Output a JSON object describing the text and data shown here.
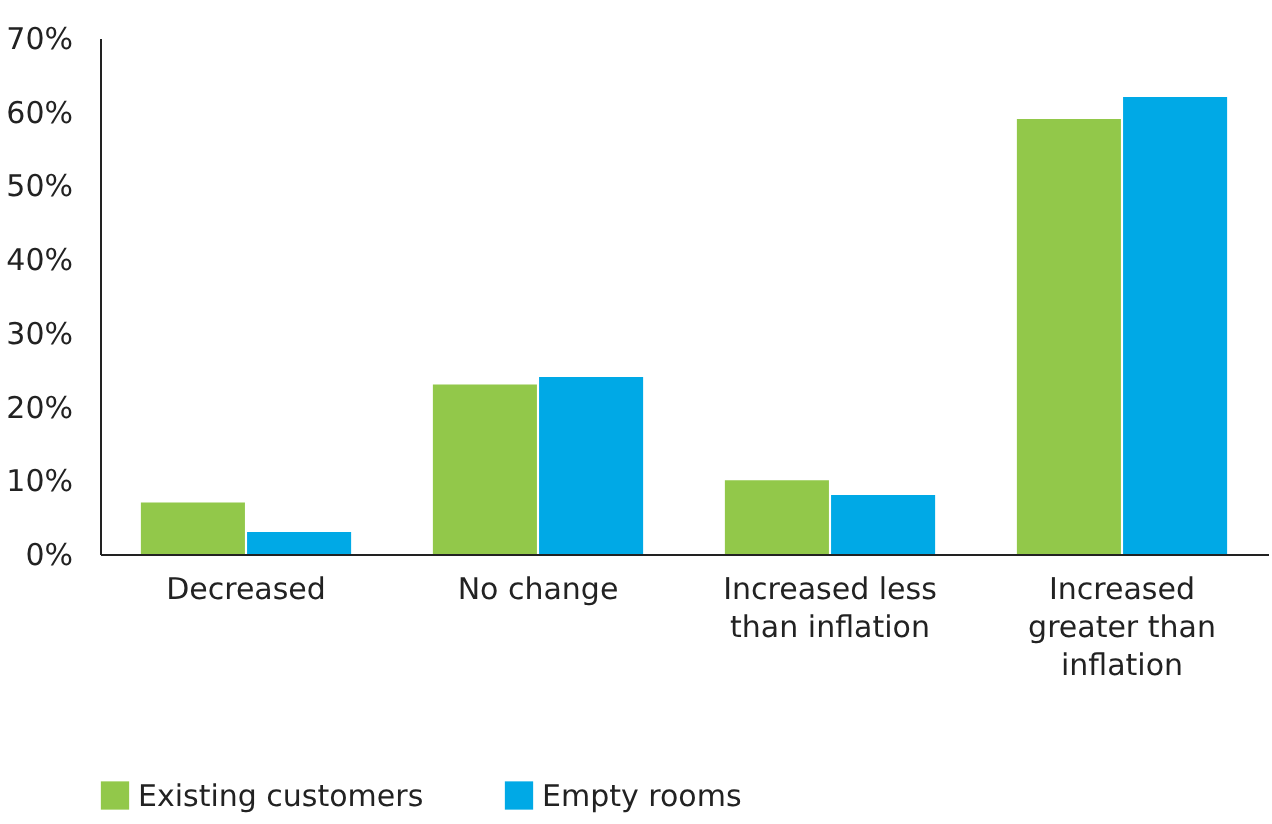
{
  "chart_data": {
    "type": "bar",
    "categories": [
      "Decreased",
      "No change",
      "Increased less than inflation",
      "Increased greater than inflation"
    ],
    "series": [
      {
        "name": "Existing customers",
        "color": "#92c84a",
        "values": [
          7,
          23,
          10,
          59
        ]
      },
      {
        "name": "Empty rooms",
        "color": "#00a9e6",
        "values": [
          3,
          24,
          8,
          62
        ]
      }
    ],
    "ylim": [
      0,
      70
    ],
    "yticks": [
      {
        "value": 0,
        "label": "0%"
      },
      {
        "value": 10,
        "label": "10%"
      },
      {
        "value": 20,
        "label": "20%"
      },
      {
        "value": 30,
        "label": "30%"
      },
      {
        "value": 40,
        "label": "40%"
      },
      {
        "value": 50,
        "label": "50%"
      },
      {
        "value": 60,
        "label": "60%"
      },
      {
        "value": 70,
        "label": "70%"
      }
    ],
    "grid": false,
    "legend": "bottom left"
  }
}
